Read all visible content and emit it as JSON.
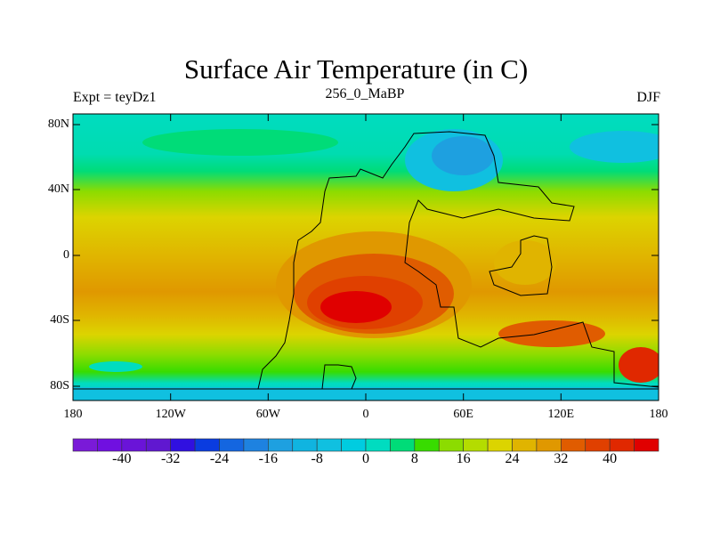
{
  "title": "Surface Air Temperature (in C)",
  "subtitle_left": "Expt = teyDz1",
  "subtitle_center": "256_0_MaBP",
  "subtitle_right": "DJF",
  "y_ticks": [
    "80N",
    "40N",
    "0",
    "40S",
    "80S"
  ],
  "x_ticks": [
    "180",
    "120W",
    "60W",
    "0",
    "60E",
    "120E",
    "180"
  ],
  "colorbar": {
    "labels": [
      "-40",
      "-32",
      "-24",
      "-16",
      "-8",
      "0",
      "8",
      "16",
      "24",
      "32",
      "40"
    ],
    "colors": [
      "#7a1ad8",
      "#7010e0",
      "#6a14d8",
      "#6018d0",
      "#3010e0",
      "#0a3ce0",
      "#1466e0",
      "#1e82e0",
      "#1ea0e0",
      "#10b4e0",
      "#10c0e0",
      "#00cce0",
      "#00dcc0",
      "#00dc78",
      "#38dc00",
      "#8cdc00",
      "#b4dc00",
      "#dcd400",
      "#e0b400",
      "#e09800",
      "#e05c00",
      "#e04000",
      "#e02800",
      "#e00000"
    ]
  }
}
